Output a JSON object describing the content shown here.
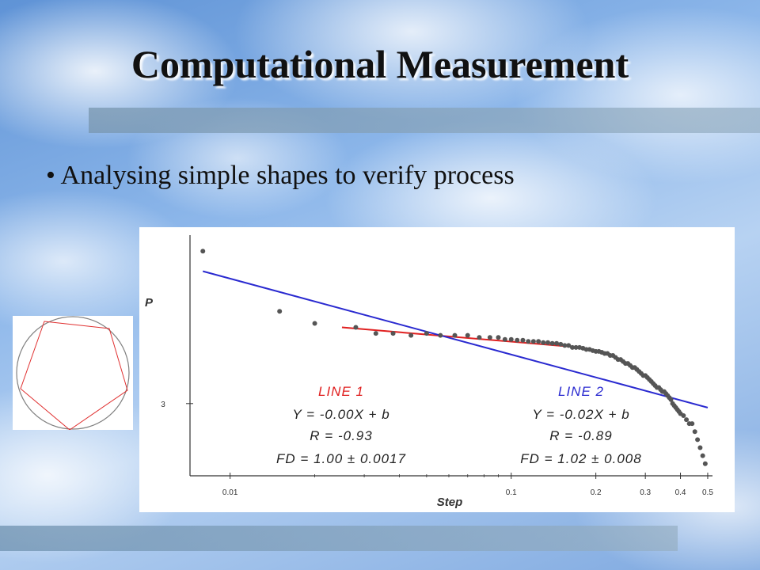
{
  "slide": {
    "title": "Computational Measurement",
    "bullet": "• Analysing simple shapes to verify process"
  },
  "colors": {
    "line1": "#e02020",
    "line2": "#2a2ad0",
    "points": "#555555",
    "axis": "#333333"
  },
  "chart_data": {
    "type": "scatter",
    "xscale": "log",
    "xlabel": "Step",
    "ylabel": "P",
    "xlim": [
      0.0072,
      0.52
    ],
    "ylim": [
      2.82,
      3.42
    ],
    "x_ticks": [
      0.01,
      0.1,
      0.2,
      0.3,
      0.4,
      0.5
    ],
    "x_tick_labels": [
      "0.01",
      "0.1",
      "0.2",
      "0.3",
      "0.4",
      "0.5"
    ],
    "y_ticks": [
      3
    ],
    "y_tick_labels": [
      "3"
    ],
    "points": {
      "x": [
        0.008,
        0.015,
        0.02,
        0.028,
        0.033,
        0.038,
        0.044,
        0.05,
        0.056,
        0.063,
        0.07,
        0.077,
        0.084,
        0.09,
        0.095,
        0.1,
        0.105,
        0.11,
        0.115,
        0.12,
        0.125,
        0.13,
        0.135,
        0.14,
        0.145,
        0.15,
        0.155,
        0.16,
        0.165,
        0.17,
        0.175,
        0.18,
        0.185,
        0.19,
        0.195,
        0.2,
        0.205,
        0.21,
        0.215,
        0.22,
        0.225,
        0.23,
        0.235,
        0.24,
        0.245,
        0.25,
        0.255,
        0.26,
        0.265,
        0.27,
        0.275,
        0.28,
        0.285,
        0.29,
        0.295,
        0.3,
        0.305,
        0.31,
        0.315,
        0.32,
        0.325,
        0.33,
        0.335,
        0.34,
        0.345,
        0.35,
        0.355,
        0.36,
        0.365,
        0.37,
        0.375,
        0.38,
        0.385,
        0.39,
        0.395,
        0.4,
        0.41,
        0.42,
        0.43,
        0.44,
        0.45,
        0.46,
        0.47,
        0.48,
        0.49
      ],
      "y": [
        3.38,
        3.23,
        3.2,
        3.19,
        3.175,
        3.175,
        3.17,
        3.175,
        3.17,
        3.17,
        3.17,
        3.165,
        3.165,
        3.165,
        3.16,
        3.16,
        3.158,
        3.158,
        3.155,
        3.155,
        3.155,
        3.152,
        3.152,
        3.15,
        3.15,
        3.148,
        3.145,
        3.145,
        3.14,
        3.14,
        3.14,
        3.138,
        3.135,
        3.135,
        3.132,
        3.13,
        3.13,
        3.128,
        3.125,
        3.125,
        3.12,
        3.12,
        3.115,
        3.11,
        3.11,
        3.105,
        3.1,
        3.1,
        3.095,
        3.09,
        3.09,
        3.085,
        3.08,
        3.075,
        3.07,
        3.07,
        3.065,
        3.06,
        3.055,
        3.05,
        3.045,
        3.04,
        3.04,
        3.035,
        3.03,
        3.03,
        3.025,
        3.02,
        3.015,
        3.01,
        3.0,
        2.995,
        2.99,
        2.985,
        2.98,
        2.975,
        2.97,
        2.96,
        2.95,
        2.95,
        2.93,
        2.91,
        2.89,
        2.87,
        2.85
      ]
    },
    "lines": [
      {
        "name": "LINE 1",
        "x": [
          0.025,
          0.175
        ],
        "y": [
          3.19,
          3.14
        ]
      },
      {
        "name": "LINE 2",
        "x": [
          0.008,
          0.5
        ],
        "y": [
          3.33,
          2.99
        ]
      }
    ],
    "annotations": {
      "line1": {
        "title": "LINE 1",
        "eq": "Y = -0.00X + b",
        "r": "R = -0.93",
        "fd": "FD = 1.00 ± 0.0017"
      },
      "line2": {
        "title": "LINE 2",
        "eq": "Y = -0.02X + b",
        "r": "R = -0.89",
        "fd": "FD = 1.02 ± 0.008"
      }
    }
  },
  "polygon_figure": {
    "shape": "pentagon-inscribed-in-circle",
    "circle_color": "#808080",
    "polygon_color": "#e03030"
  }
}
